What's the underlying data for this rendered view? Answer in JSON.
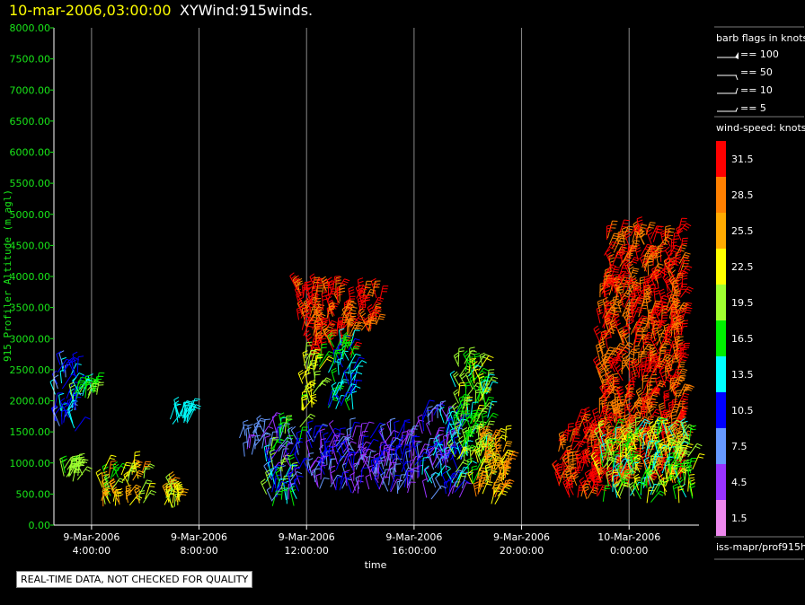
{
  "header": {
    "timestamp": "10-mar-2006,03:00:00",
    "title": "XYWind:915winds."
  },
  "notice": "REAL-TIME DATA, NOT CHECKED FOR QUALITY",
  "source": "iss-mapr/prof915h",
  "chart_data": {
    "type": "wind-barb time-height",
    "ylabel": "915 Profiler Altitude (m agl)",
    "xlabel": "time",
    "ylim": [
      0,
      8000
    ],
    "yticks": [
      "0.00",
      "500.00",
      "1000.00",
      "1500.00",
      "2000.00",
      "2500.00",
      "3000.00",
      "3500.00",
      "4000.00",
      "4500.00",
      "5000.00",
      "5500.00",
      "6000.00",
      "6500.00",
      "7000.00",
      "7500.00",
      "8000.00"
    ],
    "xlim_hours": [
      2.6,
      26.6
    ],
    "xticks": [
      {
        "hour": 4,
        "date": "9-Mar-2006",
        "time": "4:00:00"
      },
      {
        "hour": 8,
        "date": "9-Mar-2006",
        "time": "8:00:00"
      },
      {
        "hour": 12,
        "date": "9-Mar-2006",
        "time": "12:00:00"
      },
      {
        "hour": 16,
        "date": "9-Mar-2006",
        "time": "16:00:00"
      },
      {
        "hour": 20,
        "date": "9-Mar-2006",
        "time": "20:00:00"
      },
      {
        "hour": 24,
        "date": "10-Mar-2006",
        "time": "0:00:00"
      }
    ],
    "grid": "vertical",
    "barb_legend": {
      "title": "barb flags in knots",
      "items": [
        "== 100",
        "== 50",
        "== 10",
        "== 5"
      ]
    },
    "speed_legend": {
      "title": "wind-speed: knots",
      "levels": [
        {
          "label": "31.5",
          "color": "#ff0000"
        },
        {
          "label": "28.5",
          "color": "#ff8000"
        },
        {
          "label": "25.5",
          "color": "#ffaa00"
        },
        {
          "label": "22.5",
          "color": "#ffff00"
        },
        {
          "label": "19.5",
          "color": "#a0ff30"
        },
        {
          "label": "16.5",
          "color": "#00ee00"
        },
        {
          "label": "13.5",
          "color": "#00ffff"
        },
        {
          "label": "10.5",
          "color": "#0000ff"
        },
        {
          "label": "7.5",
          "color": "#6699ff"
        },
        {
          "label": "4.5",
          "color": "#9933ff"
        },
        {
          "label": "1.5",
          "color": "#ee88ee"
        }
      ]
    },
    "clusters": [
      {
        "h0": 2.6,
        "h1": 3.5,
        "a0": 1500,
        "a1": 2600,
        "speed": [
          8,
          13
        ]
      },
      {
        "h0": 3.3,
        "h1": 4.2,
        "a0": 2000,
        "a1": 2200,
        "speed": [
          14,
          20
        ]
      },
      {
        "h0": 2.9,
        "h1": 3.7,
        "a0": 700,
        "a1": 900,
        "speed": [
          17,
          21
        ]
      },
      {
        "h0": 4.3,
        "h1": 6.0,
        "a0": 300,
        "a1": 900,
        "speed": [
          17,
          29
        ]
      },
      {
        "h0": 6.7,
        "h1": 7.3,
        "a0": 250,
        "a1": 600,
        "speed": [
          19,
          28
        ]
      },
      {
        "h0": 6.9,
        "h1": 7.7,
        "a0": 1600,
        "a1": 1800,
        "speed": [
          12,
          15
        ]
      },
      {
        "h0": 9.5,
        "h1": 10.6,
        "a0": 1100,
        "a1": 1500,
        "speed": [
          4,
          9
        ]
      },
      {
        "h0": 10.5,
        "h1": 11.8,
        "a0": 300,
        "a1": 1600,
        "speed": [
          5,
          20
        ]
      },
      {
        "h0": 11.6,
        "h1": 13.7,
        "a0": 2700,
        "a1": 3800,
        "speed": [
          28,
          33
        ]
      },
      {
        "h0": 11.8,
        "h1": 12.5,
        "a0": 1800,
        "a1": 2700,
        "speed": [
          16,
          24
        ]
      },
      {
        "h0": 12.8,
        "h1": 13.8,
        "a0": 1800,
        "a1": 2900,
        "speed": [
          10,
          17
        ]
      },
      {
        "h0": 12.0,
        "h1": 16.2,
        "a0": 500,
        "a1": 1500,
        "speed": [
          3,
          12
        ]
      },
      {
        "h0": 13.8,
        "h1": 14.8,
        "a0": 3100,
        "a1": 3700,
        "speed": [
          29,
          33
        ]
      },
      {
        "h0": 16.3,
        "h1": 17.8,
        "a0": 400,
        "a1": 1800,
        "speed": [
          3,
          15
        ]
      },
      {
        "h0": 17.5,
        "h1": 18.8,
        "a0": 600,
        "a1": 2600,
        "speed": [
          14,
          22
        ]
      },
      {
        "h0": 18.3,
        "h1": 19.5,
        "a0": 300,
        "a1": 1400,
        "speed": [
          21,
          30
        ]
      },
      {
        "h0": 21.3,
        "h1": 23.0,
        "a0": 400,
        "a1": 1600,
        "speed": [
          29,
          33
        ]
      },
      {
        "h0": 22.9,
        "h1": 26.0,
        "a0": 600,
        "a1": 4700,
        "speed": [
          27,
          33
        ]
      },
      {
        "h0": 22.9,
        "h1": 26.4,
        "a0": 350,
        "a1": 1500,
        "speed": [
          12,
          24
        ]
      }
    ]
  }
}
